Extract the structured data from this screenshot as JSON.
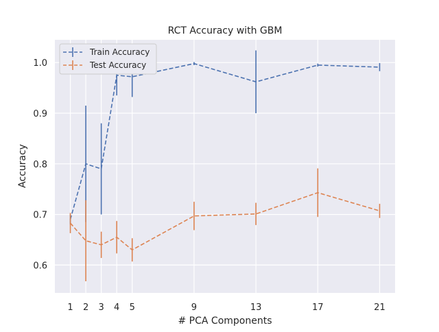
{
  "chart_data": {
    "type": "line",
    "title": "RCT Accuracy with GBM",
    "xlabel": "# PCA Components",
    "ylabel": "Accuracy",
    "x": [
      1,
      2,
      3,
      4,
      5,
      9,
      13,
      17,
      21
    ],
    "xticks": [
      1,
      2,
      3,
      4,
      5,
      9,
      13,
      17,
      21
    ],
    "yticks": [
      0.6,
      0.7,
      0.8,
      0.9,
      1.0
    ],
    "ytick_labels": [
      "0.6",
      "0.7",
      "0.8",
      "0.9",
      "1.0"
    ],
    "xlim": [
      0.0,
      22.0
    ],
    "ylim": [
      0.545,
      1.045
    ],
    "grid": true,
    "legend_position": "top-left",
    "series": [
      {
        "name": "Train Accuracy",
        "color": "#4c72b0",
        "values": [
          0.69,
          0.8,
          0.79,
          0.975,
          0.972,
          0.998,
          0.962,
          0.995,
          0.991
        ],
        "errors": [
          0.01,
          0.115,
          0.09,
          0.04,
          0.04,
          0.003,
          0.062,
          0.003,
          0.008
        ]
      },
      {
        "name": "Test Accuracy",
        "color": "#dd8452",
        "values": [
          0.683,
          0.648,
          0.64,
          0.655,
          0.63,
          0.697,
          0.701,
          0.743,
          0.707
        ],
        "errors": [
          0.02,
          0.08,
          0.026,
          0.032,
          0.023,
          0.028,
          0.022,
          0.048,
          0.014
        ]
      }
    ]
  }
}
